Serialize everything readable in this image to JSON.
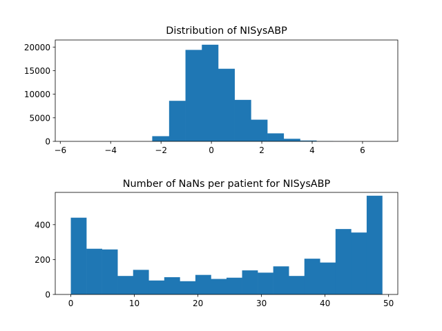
{
  "chart_data": [
    {
      "type": "bar",
      "title": "Distribution of NISysABP",
      "xlabel": "",
      "ylabel": "",
      "xlim": [
        -6.2,
        7.4
      ],
      "ylim": [
        0,
        21500
      ],
      "xticks": [
        "-6",
        "-4",
        "-2",
        "0",
        "2",
        "4",
        "6"
      ],
      "yticks": [
        "0",
        "5000",
        "10000",
        "15000",
        "20000"
      ],
      "bins": [
        {
          "x0": -2.35,
          "x1": -1.68,
          "value": 1100
        },
        {
          "x0": -1.68,
          "x1": -1.03,
          "value": 8600
        },
        {
          "x0": -1.03,
          "x1": -0.38,
          "value": 19400
        },
        {
          "x0": -0.38,
          "x1": 0.27,
          "value": 20500
        },
        {
          "x0": 0.27,
          "x1": 0.92,
          "value": 15400
        },
        {
          "x0": 0.92,
          "x1": 1.57,
          "value": 8800
        },
        {
          "x0": 1.57,
          "x1": 2.22,
          "value": 4600
        },
        {
          "x0": 2.22,
          "x1": 2.87,
          "value": 1700
        },
        {
          "x0": 2.87,
          "x1": 3.52,
          "value": 550
        },
        {
          "x0": 3.52,
          "x1": 4.17,
          "value": 180
        },
        {
          "x0": 4.17,
          "x1": 4.82,
          "value": 50
        },
        {
          "x0": 4.82,
          "x1": 5.47,
          "value": 15
        },
        {
          "x0": 5.47,
          "x1": 6.12,
          "value": 5
        },
        {
          "x0": 6.12,
          "x1": 6.77,
          "value": 3
        },
        {
          "x0": 6.77,
          "x1": 7.42,
          "value": 2
        }
      ],
      "color": "#1f77b4"
    },
    {
      "type": "bar",
      "title": "Number of NaNs per patient for NISysABP",
      "xlabel": "",
      "ylabel": "",
      "xlim": [
        -2.45,
        51.45
      ],
      "ylim": [
        0,
        585
      ],
      "xticks": [
        "0",
        "10",
        "20",
        "30",
        "40",
        "50"
      ],
      "yticks": [
        "0",
        "200",
        "400"
      ],
      "bins": [
        {
          "x0": 0.0,
          "x1": 2.45,
          "value": 440
        },
        {
          "x0": 2.45,
          "x1": 4.9,
          "value": 262
        },
        {
          "x0": 4.9,
          "x1": 7.35,
          "value": 258
        },
        {
          "x0": 7.35,
          "x1": 9.8,
          "value": 106
        },
        {
          "x0": 9.8,
          "x1": 12.25,
          "value": 141
        },
        {
          "x0": 12.25,
          "x1": 14.7,
          "value": 80
        },
        {
          "x0": 14.7,
          "x1": 17.15,
          "value": 99
        },
        {
          "x0": 17.15,
          "x1": 19.6,
          "value": 76
        },
        {
          "x0": 19.6,
          "x1": 22.05,
          "value": 112
        },
        {
          "x0": 22.05,
          "x1": 24.5,
          "value": 89
        },
        {
          "x0": 24.5,
          "x1": 26.95,
          "value": 96
        },
        {
          "x0": 26.95,
          "x1": 29.4,
          "value": 138
        },
        {
          "x0": 29.4,
          "x1": 31.85,
          "value": 125
        },
        {
          "x0": 31.85,
          "x1": 34.3,
          "value": 161
        },
        {
          "x0": 34.3,
          "x1": 36.75,
          "value": 106
        },
        {
          "x0": 36.75,
          "x1": 39.2,
          "value": 205
        },
        {
          "x0": 39.2,
          "x1": 41.65,
          "value": 183
        },
        {
          "x0": 41.65,
          "x1": 44.1,
          "value": 375
        },
        {
          "x0": 44.1,
          "x1": 46.55,
          "value": 355
        },
        {
          "x0": 46.55,
          "x1": 49.0,
          "value": 566
        }
      ],
      "color": "#1f77b4"
    }
  ]
}
